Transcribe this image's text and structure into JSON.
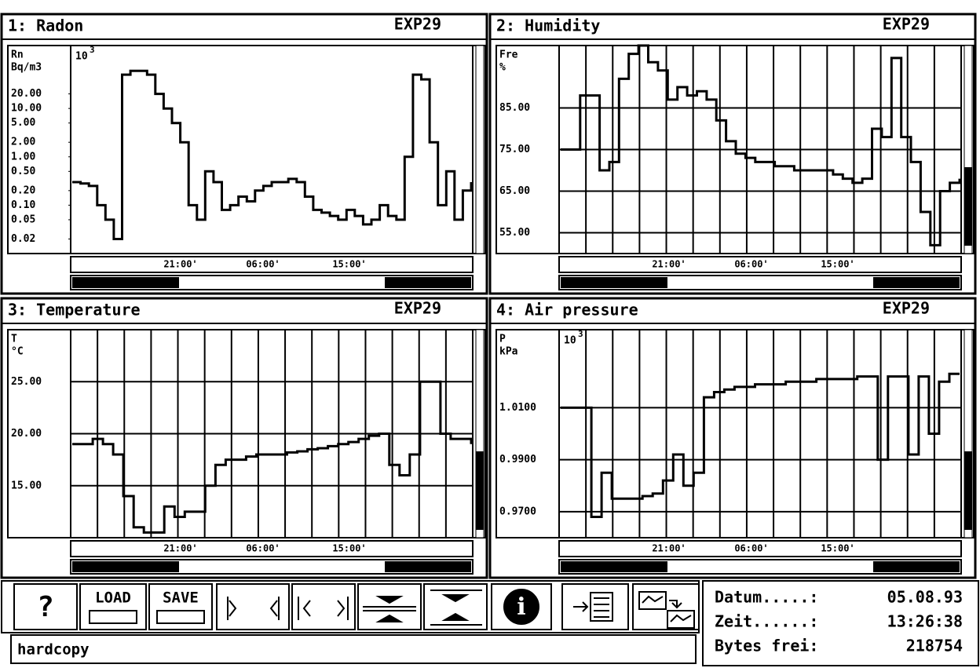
{
  "panels": [
    {
      "title": "1: Radon",
      "experiment": "EXP29",
      "y_label": "Rn",
      "y_unit": "Bq/m3",
      "scale_base": "10",
      "scale_exp": "3",
      "log_scale": true,
      "grid": false,
      "ylim": [
        0.01,
        200
      ],
      "yticks": [
        {
          "value": 20,
          "label": "20.00"
        },
        {
          "value": 10,
          "label": "10.00"
        },
        {
          "value": 5,
          "label": "5.00"
        },
        {
          "value": 2,
          "label": "2.00"
        },
        {
          "value": 1,
          "label": "1.00"
        },
        {
          "value": 0.5,
          "label": "0.50"
        },
        {
          "value": 0.2,
          "label": "0.20"
        },
        {
          "value": 0.1,
          "label": "0.10"
        },
        {
          "value": 0.05,
          "label": "0.05"
        },
        {
          "value": 0.02,
          "label": "0.02"
        }
      ],
      "time_labels": [
        "21:00'",
        "06:00'",
        "15:00'"
      ],
      "values": [
        0.3,
        0.28,
        0.25,
        0.1,
        0.05,
        0.02,
        50,
        60,
        60,
        50,
        20,
        10,
        5,
        2,
        0.1,
        0.05,
        0.5,
        0.3,
        0.08,
        0.1,
        0.15,
        0.12,
        0.2,
        0.25,
        0.3,
        0.3,
        0.35,
        0.3,
        0.15,
        0.08,
        0.07,
        0.06,
        0.05,
        0.08,
        0.06,
        0.04,
        0.05,
        0.1,
        0.06,
        0.05,
        1,
        50,
        40,
        2,
        0.1,
        0.5,
        0.05,
        0.2,
        0.3
      ]
    },
    {
      "title": "2: Humidity",
      "experiment": "EXP29",
      "y_label": "Fre",
      "y_unit": "%",
      "log_scale": false,
      "grid": true,
      "ylim": [
        50,
        100
      ],
      "yticks": [
        {
          "value": 85,
          "label": "85.00"
        },
        {
          "value": 75,
          "label": "75.00"
        },
        {
          "value": 65,
          "label": "65.00"
        },
        {
          "value": 55,
          "label": "55.00"
        }
      ],
      "time_labels": [
        "21:00'",
        "06:00'",
        "15:00'"
      ],
      "values": [
        75,
        75,
        88,
        88,
        70,
        72,
        92,
        98,
        100,
        96,
        94,
        87,
        90,
        88,
        89,
        87,
        82,
        77,
        74,
        73,
        72,
        72,
        71,
        71,
        70,
        70,
        70,
        70,
        69,
        68,
        67,
        68,
        80,
        78,
        97,
        78,
        72,
        60,
        52,
        65,
        67,
        68
      ]
    },
    {
      "title": "3: Temperature",
      "experiment": "EXP29",
      "y_label": "T",
      "y_unit": "°C",
      "log_scale": false,
      "grid": true,
      "ylim": [
        10,
        30
      ],
      "yticks": [
        {
          "value": 25,
          "label": "25.00"
        },
        {
          "value": 20,
          "label": "20.00"
        },
        {
          "value": 15,
          "label": "15.00"
        }
      ],
      "time_labels": [
        "21:00'",
        "06:00'",
        "15:00'"
      ],
      "values": [
        19,
        19,
        19.5,
        19,
        18,
        14,
        11,
        10.5,
        10.5,
        13,
        12,
        12.5,
        12.5,
        15,
        17,
        17.5,
        17.5,
        17.8,
        18,
        18,
        18,
        18.2,
        18.3,
        18.5,
        18.6,
        18.8,
        19,
        19.2,
        19.5,
        19.8,
        20,
        17,
        16,
        18,
        25,
        25,
        20,
        19.5,
        19.5,
        19
      ]
    },
    {
      "title": "4: Air pressure",
      "experiment": "EXP29",
      "y_label": "P",
      "y_unit": "kPa",
      "scale_base": "10",
      "scale_exp": "3",
      "log_scale": false,
      "grid": true,
      "ylim": [
        0.96,
        1.04
      ],
      "yticks": [
        {
          "value": 1.01,
          "label": "1.0100"
        },
        {
          "value": 0.99,
          "label": "0.9900"
        },
        {
          "value": 0.97,
          "label": "0.9700"
        }
      ],
      "time_labels": [
        "21:00'",
        "06:00'",
        "15:00'"
      ],
      "values": [
        1.01,
        1.01,
        1.01,
        0.968,
        0.985,
        0.975,
        0.975,
        0.975,
        0.976,
        0.977,
        0.982,
        0.992,
        0.98,
        0.985,
        1.014,
        1.016,
        1.017,
        1.018,
        1.018,
        1.019,
        1.019,
        1.019,
        1.02,
        1.02,
        1.02,
        1.021,
        1.021,
        1.021,
        1.021,
        1.022,
        1.022,
        0.99,
        1.022,
        1.022,
        0.992,
        1.022,
        1.0,
        1.02,
        1.023,
        1.023
      ]
    }
  ],
  "toolbar": {
    "help": "?",
    "load": "LOAD",
    "save": "SAVE"
  },
  "status": "hardcopy",
  "info": [
    {
      "label": "Datum.....:",
      "value": "05.08.93"
    },
    {
      "label": "Zeit......:",
      "value": "13:26:38"
    },
    {
      "label": "Bytes frei:",
      "value": "218754"
    }
  ]
}
